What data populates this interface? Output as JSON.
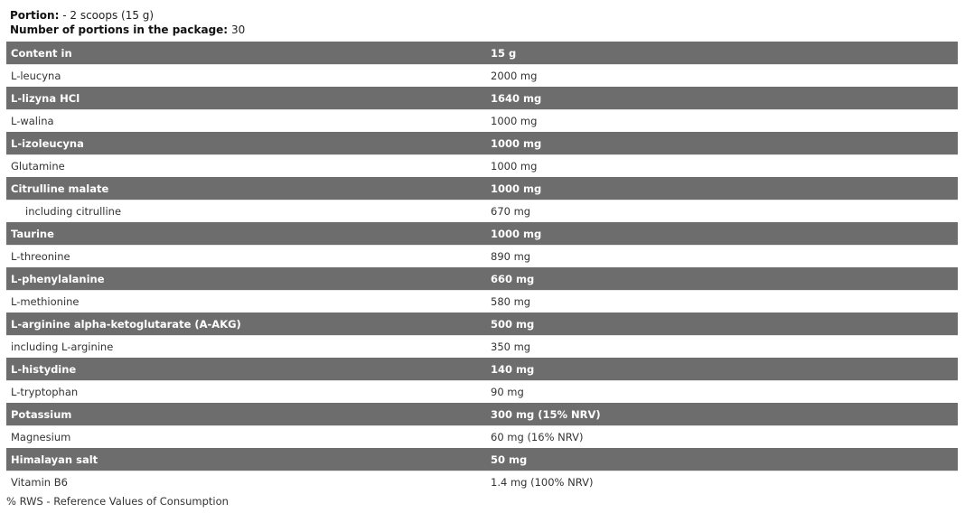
{
  "portion": {
    "label": "Portion:",
    "value": "- 2 scoops (15 g)"
  },
  "portions_count": {
    "label": "Number of portions in the package:",
    "value": "30"
  },
  "table": {
    "header": [
      "Content in",
      "15 g"
    ],
    "rows": [
      {
        "name": "L-leucyna",
        "value": "2000 mg"
      },
      {
        "name": "L-lizyna HCl",
        "value": "1640 mg"
      },
      {
        "name": "L-walina",
        "value": "1000 mg"
      },
      {
        "name": "L-izoleucyna",
        "value": "1000 mg"
      },
      {
        "name": "Glutamine",
        "value": "1000 mg"
      },
      {
        "name": "Citrulline malate",
        "value": "1000 mg"
      },
      {
        "name": "including citrulline",
        "value": "670 mg",
        "indent": true
      },
      {
        "name": "Taurine",
        "value": "1000 mg"
      },
      {
        "name": "L-threonine",
        "value": "890 mg"
      },
      {
        "name": "L-phenylalanine",
        "value": "660 mg"
      },
      {
        "name": "L-methionine",
        "value": "580 mg"
      },
      {
        "name": "L-arginine alpha-ketoglutarate (A-AKG)",
        "value": "500 mg"
      },
      {
        "name": "including L-arginine",
        "value": "350 mg"
      },
      {
        "name": "L-histydine",
        "value": "140 mg"
      },
      {
        "name": "L-tryptophan",
        "value": "90 mg"
      },
      {
        "name": "Potassium",
        "value": "300 mg (15% NRV)"
      },
      {
        "name": "Magnesium",
        "value": "60 mg (16% NRV)"
      },
      {
        "name": "Himalayan salt",
        "value": "50 mg"
      },
      {
        "name": "Vitamin B6",
        "value": "1.4 mg (100% NRV)"
      }
    ]
  },
  "footnote": "% RWS - Reference Values of Consumption",
  "colors": {
    "stripe": "#6d6d6d"
  }
}
